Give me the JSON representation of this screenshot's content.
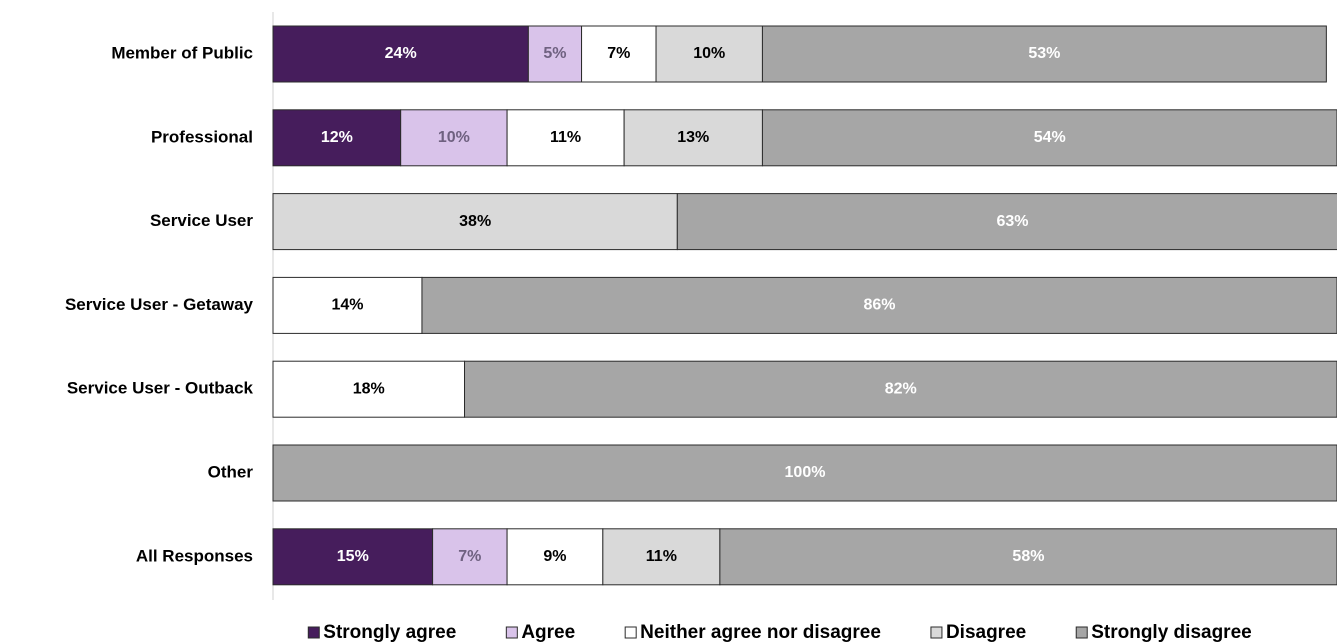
{
  "chart_data": {
    "type": "stacked_bar_horizontal",
    "categories": [
      "Member of Public",
      "Professional",
      "Service User",
      "Service User - Getaway",
      "Service User - Outback",
      "Other",
      "All Responses"
    ],
    "xlim": [
      0,
      100
    ],
    "legend": "bottom",
    "series": [
      {
        "name": "Strongly agree",
        "color": "#461d5c",
        "label_color": "#ffffff",
        "values": [
          24,
          12,
          null,
          null,
          null,
          null,
          15
        ],
        "value_labels": [
          "24%",
          "12%",
          null,
          null,
          null,
          null,
          "15%"
        ]
      },
      {
        "name": "Agree",
        "color": "#d9c3ea",
        "label_color": "#6f6180",
        "values": [
          5,
          10,
          null,
          null,
          null,
          null,
          7
        ],
        "value_labels": [
          "5%",
          "10%",
          null,
          null,
          null,
          null,
          "7%"
        ]
      },
      {
        "name": "Neither agree nor disagree",
        "color": "#ffffff",
        "label_color": "#000000",
        "values": [
          7,
          11,
          null,
          14,
          18,
          null,
          9
        ],
        "value_labels": [
          "7%",
          "11%",
          null,
          "14%",
          "18%",
          null,
          "9%"
        ]
      },
      {
        "name": "Disagree",
        "color": "#d9d9d9",
        "label_color": "#000000",
        "values": [
          10,
          13,
          38,
          null,
          null,
          null,
          11
        ],
        "value_labels": [
          "10%",
          "13%",
          "38%",
          null,
          null,
          null,
          "11%"
        ]
      },
      {
        "name": "Strongly disagree",
        "color": "#a6a6a6",
        "label_color": "#ffffff",
        "values": [
          53,
          54,
          63,
          86,
          82,
          100,
          58
        ],
        "value_labels": [
          "53%",
          "54%",
          "63%",
          "86%",
          "82%",
          "100%",
          "58%"
        ]
      }
    ]
  }
}
